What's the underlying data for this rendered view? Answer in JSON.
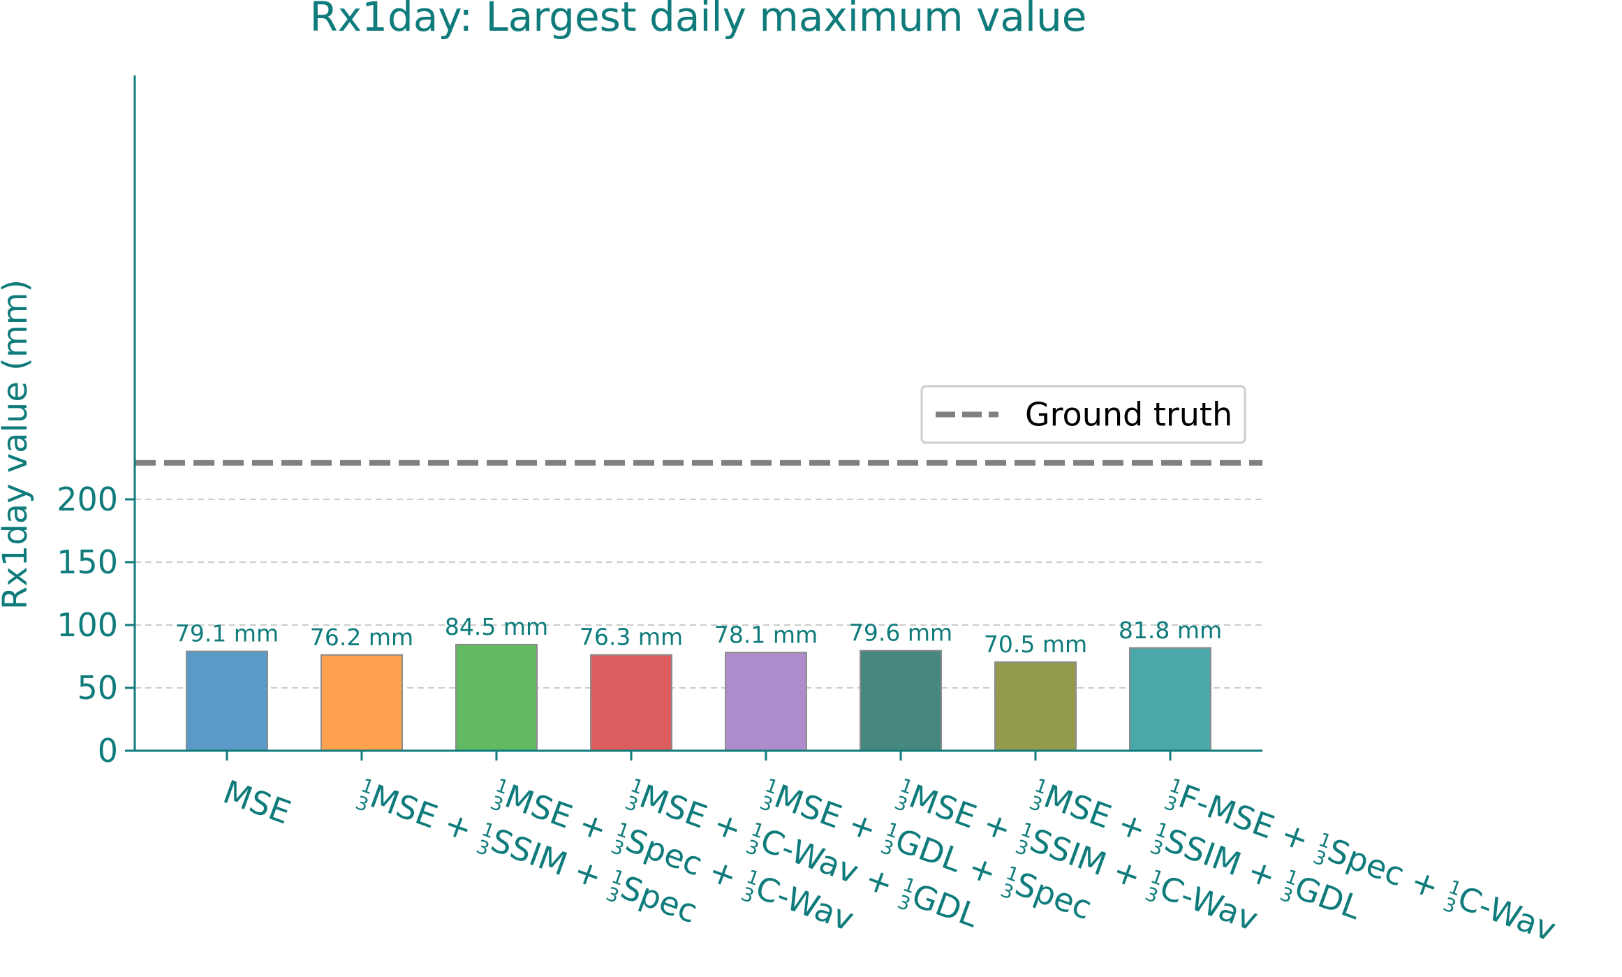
{
  "chart_data": {
    "type": "bar",
    "title": "Rx1day: Largest daily maximum value",
    "ylabel": "Rx1day value (mm)",
    "xlabel": "",
    "ylim": [
      0,
      235
    ],
    "yticks": [
      0,
      50,
      100,
      150,
      200
    ],
    "grid": "horizontal dashed",
    "legend_placement": "center-right",
    "value_unit": "mm",
    "categories": [
      "MSE",
      "1/3MSE + 1/3SSIM + 1/3Spec",
      "1/3MSE + 1/3Spec + 1/3C-Wav",
      "1/3MSE + 1/3C-Wav + 1/3GDL",
      "1/3MSE + 1/3GDL + 1/3Spec",
      "1/3MSE + 1/3SSIM + 1/3C-Wav",
      "1/3MSE + 1/3SSIM + 1/3GDL",
      "1/3F-MSE + 1/3Spec + 1/3C-Wav"
    ],
    "values": [
      79.1,
      76.2,
      84.5,
      76.3,
      78.1,
      79.6,
      70.5,
      81.8
    ],
    "data_labels": [
      "79.1 mm",
      "76.2 mm",
      "84.5 mm",
      "76.3 mm",
      "78.1 mm",
      "79.6 mm",
      "70.5 mm",
      "81.8 mm"
    ],
    "bar_colors": [
      "#5b9ac7",
      "#fea14f",
      "#63b961",
      "#dd5e5e",
      "#ae8ccb",
      "#46877f",
      "#939a4c",
      "#4aa8a8"
    ],
    "reference_line": {
      "label": "Ground truth",
      "value": 229,
      "color": "#808080",
      "style": "dashed"
    },
    "colors": {
      "text": "#0f7b7b",
      "axis": "#0f7b7b",
      "grid": "#cccccc",
      "bar_edge": "#8c8c8c"
    }
  }
}
